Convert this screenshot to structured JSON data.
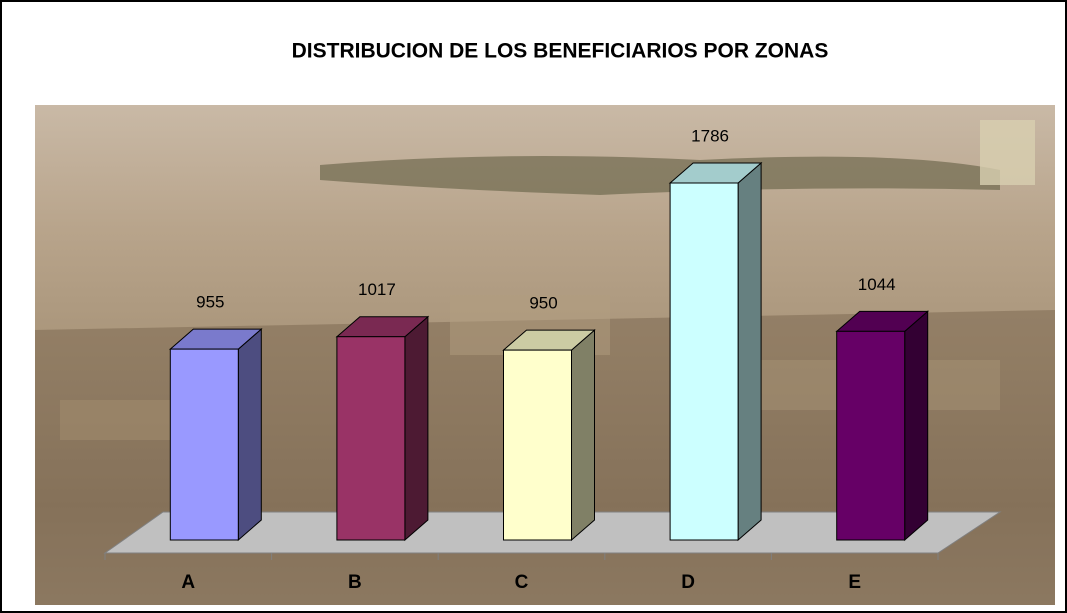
{
  "chart_data": {
    "type": "bar3d",
    "title": "DISTRIBUCION DE LOS BENEFICIARIOS POR ZONAS",
    "categories": [
      "A",
      "B",
      "C",
      "D",
      "E"
    ],
    "values": [
      955,
      1017,
      950,
      1786,
      1044
    ],
    "colors": [
      "#9999ff",
      "#993366",
      "#ffffcc",
      "#ccffff",
      "#660066"
    ]
  }
}
